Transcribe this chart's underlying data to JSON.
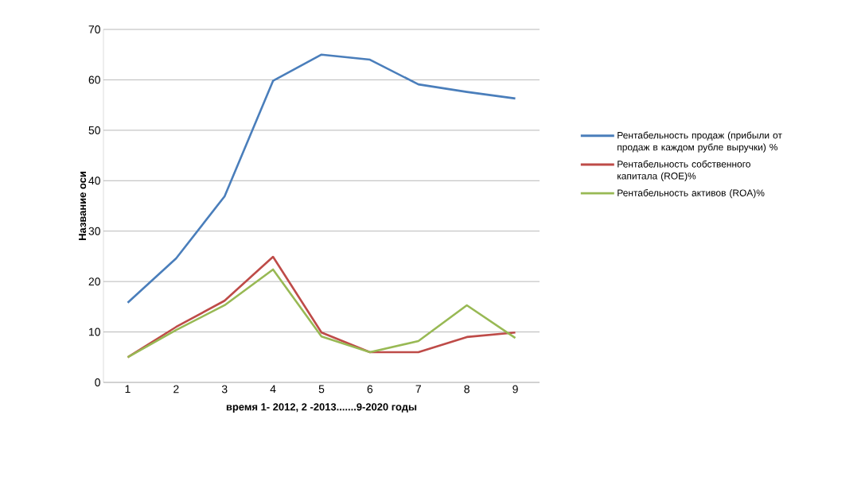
{
  "chart_data": {
    "type": "line",
    "categories": [
      "1",
      "2",
      "3",
      "4",
      "5",
      "6",
      "7",
      "8",
      "9"
    ],
    "series": [
      {
        "name": "Рентабельность продаж (прибыли от продаж в каждом рубле выручки)  %",
        "color": "#4a7ebb",
        "values": [
          15.8,
          24.6,
          36.9,
          59.8,
          65,
          64,
          59.1,
          57.6,
          56.3
        ]
      },
      {
        "name": "Рентабельность собственного капитала (ROE)%",
        "color": "#be4b48",
        "values": [
          5,
          11,
          16.2,
          24.9,
          9.9,
          6,
          6,
          9,
          9.9
        ]
      },
      {
        "name": "Рентабельность активов (ROA)%",
        "color": "#98b954",
        "values": [
          5,
          10.4,
          15.3,
          22.4,
          9.1,
          6,
          8.2,
          15.3,
          8.8
        ]
      }
    ],
    "xlabel": "время 1- 2012, 2 -2013.......9-2020 годы",
    "ylabel": "Название оси",
    "ylim": [
      0,
      70
    ],
    "yticks": [
      0,
      10,
      20,
      30,
      40,
      50,
      60,
      70
    ],
    "grid": "y",
    "legend": "right"
  }
}
